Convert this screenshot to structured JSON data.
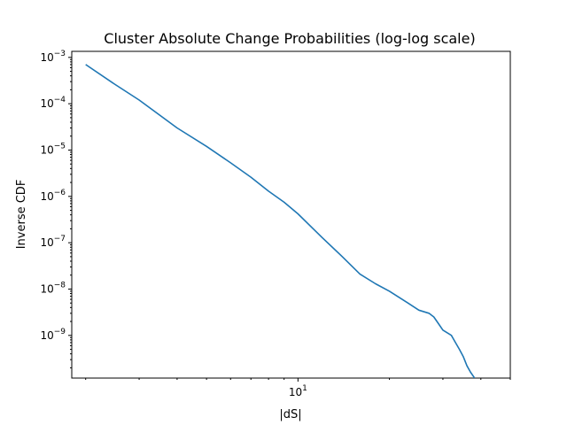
{
  "chart_data": {
    "type": "line",
    "title": "Cluster Absolute Change Probabilities (log-log scale)",
    "xlabel": "|dS|",
    "ylabel": "Inverse CDF",
    "x_scale": "log",
    "y_scale": "log",
    "xlim": [
      1.8,
      50
    ],
    "ylim": [
      1.2e-10,
      0.00135
    ],
    "grid": false,
    "x_ticks": [
      {
        "value": 10,
        "base": "10",
        "exp": "1"
      }
    ],
    "y_ticks": [
      {
        "value": 1e-09,
        "base": "10",
        "exp": "−9"
      },
      {
        "value": 1e-08,
        "base": "10",
        "exp": "−8"
      },
      {
        "value": 1e-07,
        "base": "10",
        "exp": "−7"
      },
      {
        "value": 1e-06,
        "base": "10",
        "exp": "−6"
      },
      {
        "value": 1e-05,
        "base": "10",
        "exp": "−5"
      },
      {
        "value": 0.0001,
        "base": "10",
        "exp": "−4"
      },
      {
        "value": 0.001,
        "base": "10",
        "exp": "−3"
      }
    ],
    "series": [
      {
        "color": "#1f77b4",
        "x": [
          2.0,
          2.5,
          3.0,
          4.0,
          5.0,
          6.0,
          7.0,
          8.0,
          9.0,
          10.0,
          12.0,
          14.0,
          16.0,
          18.0,
          20.0,
          23.0,
          25.0,
          27.0,
          28.0,
          29.0,
          30.0,
          32.0,
          33.0,
          34.0,
          35.0,
          36.0,
          37.0,
          38.0,
          38.0
        ],
        "y": [
          0.0007,
          0.00026,
          0.00012,
          3e-05,
          1.2e-05,
          5.3e-06,
          2.6e-06,
          1.3e-06,
          7.5e-07,
          4.2e-07,
          1.3e-07,
          5e-08,
          2.1e-08,
          1.3e-08,
          9e-09,
          5e-09,
          3.5e-09,
          3e-09,
          2.5e-09,
          1.8e-09,
          1.3e-09,
          1e-09,
          7e-10,
          5e-10,
          3.5e-10,
          2.2e-10,
          1.6e-10,
          1.25e-10,
          1.2e-10
        ]
      }
    ]
  }
}
